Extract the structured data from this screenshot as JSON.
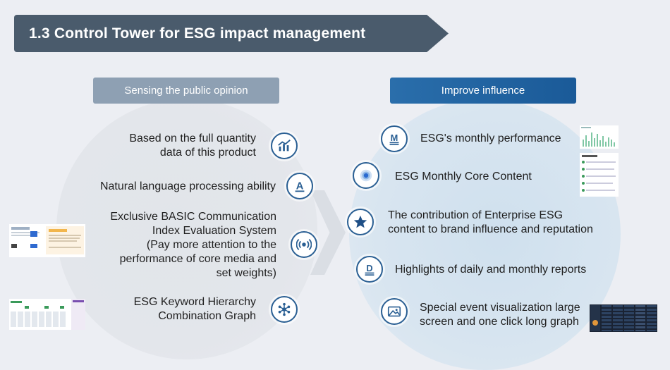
{
  "title": "1.3 Control Tower for ESG impact management",
  "left": {
    "header": "Sensing the public opinion",
    "items": [
      {
        "lines": [
          "Based on the full quantity",
          "data of this product"
        ],
        "icon": "bar-chart-icon"
      },
      {
        "lines": [
          "Natural language processing ability"
        ],
        "icon": "letter-a-icon"
      },
      {
        "lines": [
          "Exclusive BASIC Communication",
          "Index Evaluation System",
          "(Pay more attention to the",
          "performance of core media and",
          "set weights)"
        ],
        "icon": "broadcast-icon"
      },
      {
        "lines": [
          "ESG Keyword Hierarchy",
          "Combination Graph"
        ],
        "icon": "network-graph-icon"
      }
    ]
  },
  "right": {
    "header": "Improve influence",
    "items": [
      {
        "lines": [
          "ESG's monthly performance"
        ],
        "icon": "letter-m-icon"
      },
      {
        "lines": [
          "ESG Monthly Core Content"
        ],
        "icon": "target-icon"
      },
      {
        "lines": [
          "The contribution of Enterprise ESG",
          "content to brand influence and reputation"
        ],
        "icon": "star-icon"
      },
      {
        "lines": [
          "Highlights of daily and monthly reports"
        ],
        "icon": "letter-d-icon"
      },
      {
        "lines": [
          "Special event visualization large",
          "screen and one click long graph"
        ],
        "icon": "image-icon"
      }
    ]
  },
  "colors": {
    "banner": "#4a5b6c",
    "left_header": "#8ea0b3",
    "right_header": "#1f62a0",
    "icon_stroke": "#2a5f93"
  }
}
